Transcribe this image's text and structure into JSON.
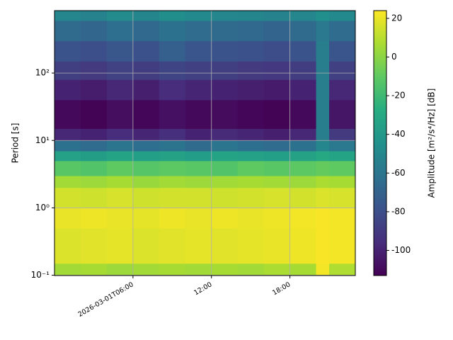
{
  "chart_data": {
    "type": "heatmap",
    "xlabel": null,
    "ylabel": "Period [s]",
    "colorbar_label": "Amplitude [m²/s⁴/Hz] [dB]",
    "colormap": "viridis",
    "clim": [
      -113,
      24
    ],
    "cticks": [
      -100,
      -80,
      -60,
      -40,
      -20,
      0,
      20
    ],
    "xlim": [
      0,
      23
    ],
    "xticks": [
      {
        "value": 6,
        "label": "2026-03-01T06:00"
      },
      {
        "value": 12,
        "label": "12:00"
      },
      {
        "value": 18,
        "label": "18:00"
      }
    ],
    "ylim": [
      0.099,
      843
    ],
    "ylog": true,
    "yticks": [
      {
        "value": 0.1,
        "label": "10⁻¹"
      },
      {
        "value": 1,
        "label": "10⁰"
      },
      {
        "value": 10,
        "label": "10¹"
      },
      {
        "value": 100,
        "label": "10²"
      }
    ],
    "grid": true,
    "xbins": [
      0,
      2,
      4,
      6,
      8,
      10,
      12,
      14,
      16,
      18,
      20,
      21,
      23
    ],
    "ybins": [
      0.099,
      0.15,
      0.5,
      1,
      2,
      3,
      5,
      7,
      10,
      15,
      40,
      80,
      150,
      300,
      600,
      843
    ],
    "z": [
      [
        5,
        6,
        4,
        5,
        6,
        5,
        6,
        5,
        7,
        6,
        22,
        8
      ],
      [
        17,
        18,
        19,
        17,
        18,
        19,
        18,
        19,
        20,
        21,
        23,
        22
      ],
      [
        20,
        21,
        20,
        19,
        21,
        20,
        21,
        20,
        21,
        22,
        23,
        22
      ],
      [
        15,
        14,
        16,
        14,
        15,
        15,
        14,
        15,
        16,
        15,
        17,
        16
      ],
      [
        5,
        4,
        6,
        3,
        5,
        4,
        5,
        6,
        5,
        4,
        7,
        6
      ],
      [
        -12,
        -14,
        -10,
        -13,
        -11,
        -12,
        -14,
        -10,
        -12,
        -11,
        -9,
        -10
      ],
      [
        -35,
        -37,
        -33,
        -36,
        -34,
        -38,
        -33,
        -35,
        -36,
        -34,
        -30,
        -33
      ],
      [
        -62,
        -65,
        -60,
        -64,
        -61,
        -66,
        -60,
        -63,
        -65,
        -62,
        -50,
        -58
      ],
      [
        -98,
        -100,
        -96,
        -99,
        -95,
        -100,
        -97,
        -99,
        -101,
        -98,
        -55,
        -90
      ],
      [
        -110,
        -112,
        -108,
        -111,
        -107,
        -110,
        -109,
        -111,
        -112,
        -110,
        -55,
        -105
      ],
      [
        -100,
        -102,
        -98,
        -101,
        -96,
        -99,
        -100,
        -101,
        -103,
        -100,
        -55,
        -98
      ],
      [
        -88,
        -90,
        -86,
        -89,
        -85,
        -87,
        -88,
        -90,
        -91,
        -89,
        -55,
        -87
      ],
      [
        -78,
        -80,
        -76,
        -79,
        -72,
        -77,
        -78,
        -79,
        -81,
        -78,
        -55,
        -77
      ],
      [
        -66,
        -68,
        -64,
        -67,
        -62,
        -65,
        -66,
        -67,
        -69,
        -66,
        -58,
        -65
      ],
      [
        -50,
        -52,
        -48,
        -51,
        -46,
        -49,
        -50,
        -51,
        -52,
        -50,
        -45,
        -49
      ]
    ]
  }
}
